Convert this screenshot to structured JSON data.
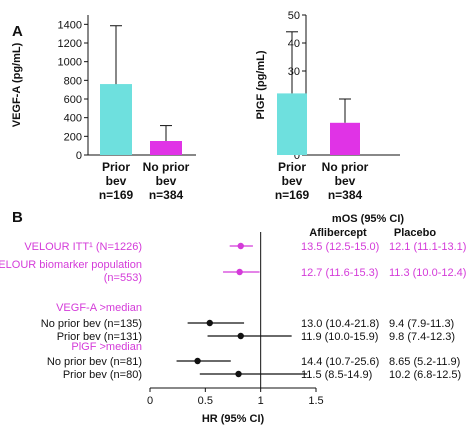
{
  "panel_labels": [
    "A",
    "B"
  ],
  "colors": {
    "teal": "#6ee0de",
    "magenta": "#e033e6",
    "pink_text": "#d43bd9",
    "black": "#111111"
  },
  "chart_data": [
    {
      "type": "bar",
      "ylabel": "VEGF-A (pg/mL)",
      "ylim": [
        0,
        1500
      ],
      "yticks": [
        0,
        200,
        400,
        600,
        800,
        1000,
        1200,
        1400
      ],
      "categories": [
        {
          "line1": "Prior",
          "line2": "bev",
          "line3": "n=169"
        },
        {
          "line1": "No prior",
          "line2": "bev",
          "line3": "n=384"
        }
      ],
      "values": [
        760,
        150
      ],
      "error_upper": [
        1385,
        315
      ],
      "bar_colors": [
        "#6ee0de",
        "#e033e6"
      ]
    },
    {
      "type": "bar",
      "ylabel": "PlGF (pg/mL)",
      "ylim": [
        0,
        50
      ],
      "yticks": [
        0,
        10,
        20,
        30,
        40,
        50
      ],
      "categories": [
        {
          "line1": "Prior",
          "line2": "bev",
          "line3": "n=169"
        },
        {
          "line1": "No prior",
          "line2": "bev",
          "line3": "n=384"
        }
      ],
      "values": [
        22,
        11.5
      ],
      "error_upper": [
        44,
        20
      ],
      "bar_colors": [
        "#6ee0de",
        "#e033e6"
      ]
    },
    {
      "type": "forest",
      "xlabel": "HR (95% CI)",
      "xlim": [
        0,
        1.5
      ],
      "xticks": [
        "0",
        "0.5",
        "1",
        "1.5"
      ],
      "xtick_values": [
        0,
        0.5,
        1,
        1.5
      ],
      "reference_line": 1,
      "header": {
        "title": "mOS (95% CI)",
        "col1": "Aflibercept",
        "col2": "Placebo"
      },
      "rows": [
        {
          "label": "VELOUR ITT¹ (N=1226)",
          "color": "#d43bd9",
          "hr": 0.82,
          "lo": 0.72,
          "hi": 0.93,
          "aflibercept": "13.5 (12.5-15.0)",
          "placebo": "12.1 (11.1-13.1)"
        },
        {
          "label": "VELOUR biomarker population",
          "label2": "(n=553)",
          "color": "#d43bd9",
          "hr": 0.81,
          "lo": 0.66,
          "hi": 0.99,
          "aflibercept": "12.7 (11.6-15.3)",
          "placebo": "11.3 (10.0-12.4)"
        },
        {
          "group_label": "VEGF-A >median",
          "group_color": "#d43bd9"
        },
        {
          "label": "No prior bev (n=135)",
          "color": "#111111",
          "hr": 0.54,
          "lo": 0.34,
          "hi": 0.85,
          "aflibercept": "13.0 (10.4-21.8)",
          "placebo": "9.4 (7.9-11.3)"
        },
        {
          "label": "Prior bev (n=131)",
          "color": "#111111",
          "hr": 0.82,
          "lo": 0.52,
          "hi": 1.28,
          "aflibercept": "11.9 (10.0-15.9)",
          "placebo": "9.8 (7.4-12.3)"
        },
        {
          "group_label": "PlGF >median",
          "group_color": "#d43bd9"
        },
        {
          "label": "No prior bev (n=81)",
          "color": "#111111",
          "hr": 0.43,
          "lo": 0.24,
          "hi": 0.73,
          "aflibercept": "14.4 (10.7-25.6)",
          "placebo": "8.65 (5.2-11.9)"
        },
        {
          "label": "Prior bev (n=80)",
          "color": "#111111",
          "hr": 0.8,
          "lo": 0.45,
          "hi": 1.42,
          "aflibercept": "11.5 (8.5-14.9)",
          "placebo": "10.2 (6.8-12.5)"
        }
      ]
    }
  ]
}
